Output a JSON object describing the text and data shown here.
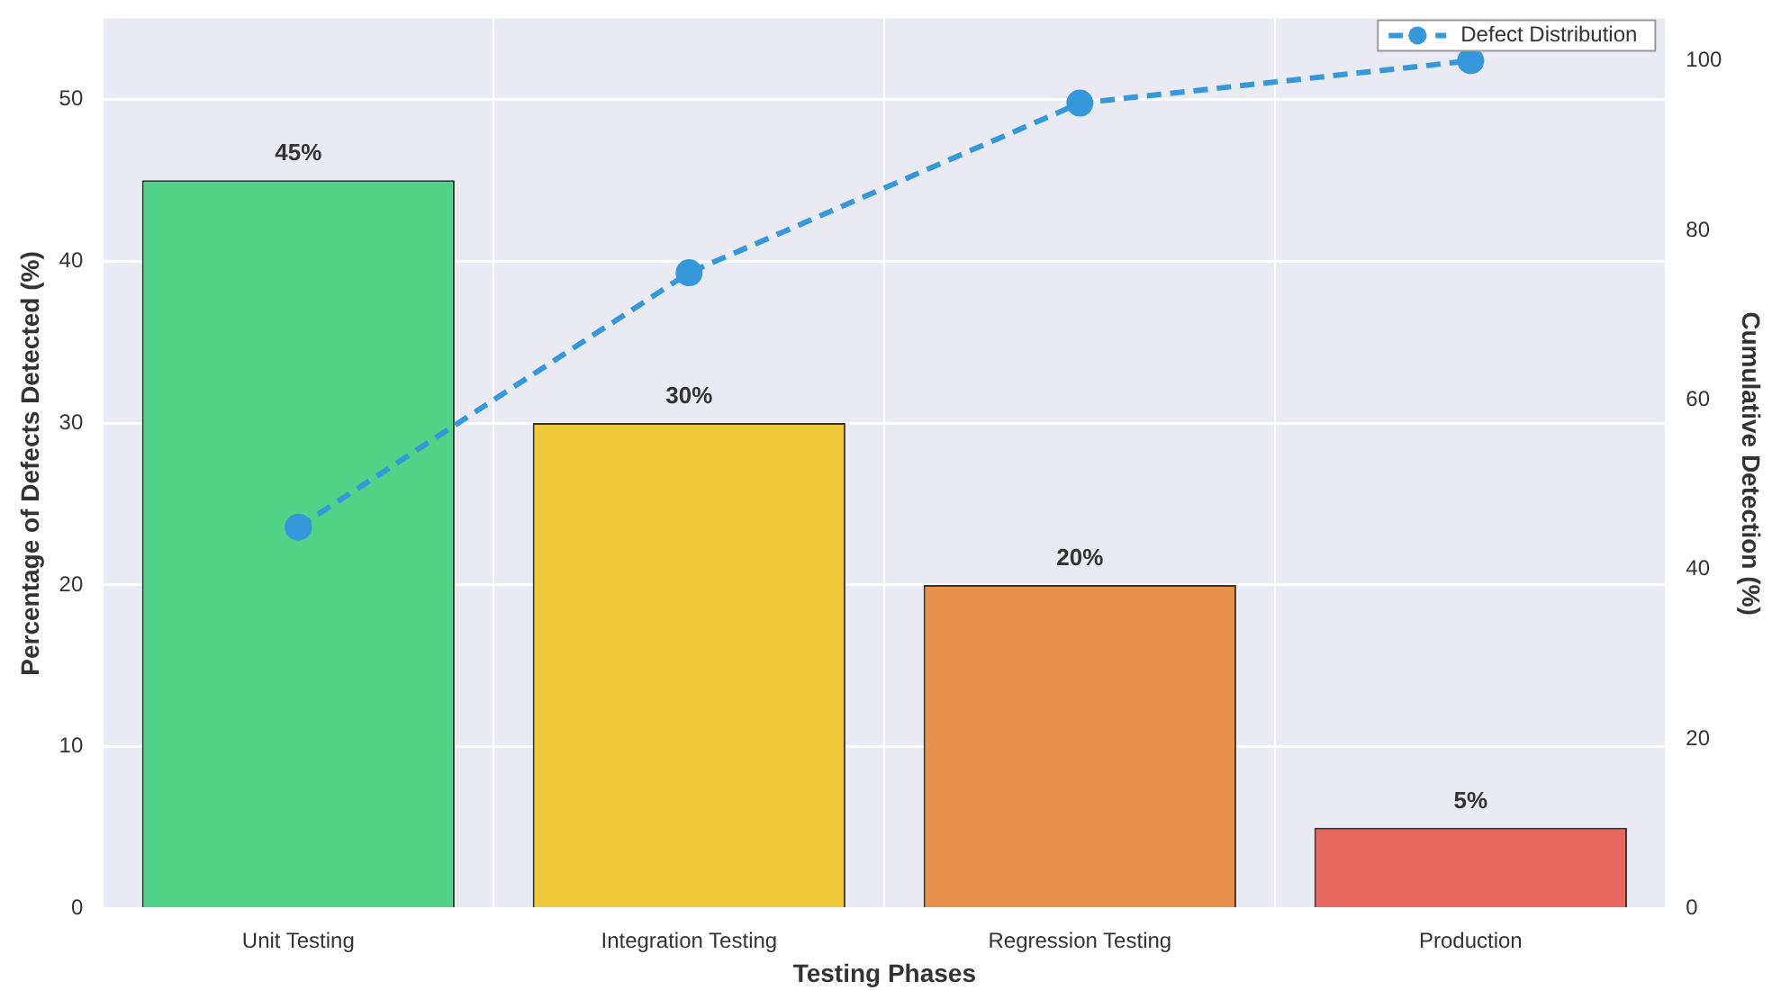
{
  "chart_data": {
    "type": "bar",
    "xlabel": "Testing Phases",
    "ylabel": "Percentage of Defects Detected (%)",
    "y2label": "Cumulative Detection (%)",
    "categories": [
      "Unit Testing",
      "Integration Testing",
      "Regression Testing",
      "Production"
    ],
    "series": [
      {
        "colors": [
          "#50d287",
          "#f0c93a",
          "#e6914b",
          "#e8685f"
        ],
        "values": [
          45,
          30,
          20,
          5
        ],
        "value_labels": [
          "45%",
          "30%",
          "20%",
          "5%"
        ]
      },
      {
        "type": "line",
        "name": "Defect Distribution",
        "color": "#3498db",
        "axis": "y2",
        "values": [
          45,
          75,
          95,
          100
        ],
        "marker": "circle",
        "line_style": "dashed"
      }
    ],
    "ylim": [
      0,
      55
    ],
    "yticks": [
      0,
      10,
      20,
      30,
      40,
      50
    ],
    "y2lim": [
      0,
      105
    ],
    "y2ticks": [
      0,
      20,
      40,
      60,
      80,
      100
    ],
    "grid": true,
    "legend": "top right"
  }
}
